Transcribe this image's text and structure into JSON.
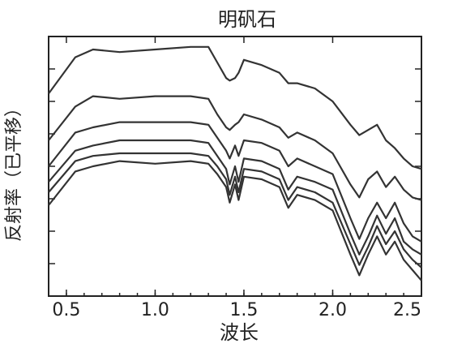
{
  "chart_data": {
    "type": "line",
    "title": "明矾石",
    "xlabel": "波长",
    "ylabel": "反射率（已平移）",
    "xlim": [
      0.4,
      2.5
    ],
    "ylim": [
      0,
      1
    ],
    "xticks": [
      "0.5",
      "1.0",
      "1.5",
      "2.0",
      "2.5"
    ],
    "xtick_values": [
      0.5,
      1.0,
      1.5,
      2.0,
      2.5
    ],
    "y_tick_count": 7,
    "grid": false,
    "x": [
      0.4,
      0.55,
      0.65,
      0.8,
      1.0,
      1.2,
      1.3,
      1.35,
      1.4,
      1.42,
      1.45,
      1.47,
      1.5,
      1.6,
      1.7,
      1.75,
      1.8,
      1.9,
      2.0,
      2.1,
      2.15,
      2.2,
      2.25,
      2.3,
      2.35,
      2.4,
      2.45,
      2.5
    ],
    "series": [
      {
        "values": [
          0.78,
          0.92,
          0.95,
          0.94,
          0.95,
          0.96,
          0.96,
          0.9,
          0.84,
          0.83,
          0.84,
          0.86,
          0.91,
          0.89,
          0.86,
          0.82,
          0.82,
          0.8,
          0.75,
          0.66,
          0.62,
          0.64,
          0.66,
          0.6,
          0.57,
          0.53,
          0.5,
          0.49
        ]
      },
      {
        "values": [
          0.6,
          0.73,
          0.77,
          0.76,
          0.77,
          0.77,
          0.76,
          0.7,
          0.65,
          0.64,
          0.66,
          0.67,
          0.7,
          0.68,
          0.65,
          0.61,
          0.63,
          0.6,
          0.55,
          0.43,
          0.38,
          0.45,
          0.48,
          0.42,
          0.46,
          0.41,
          0.38,
          0.37
        ]
      },
      {
        "values": [
          0.5,
          0.63,
          0.65,
          0.67,
          0.67,
          0.67,
          0.66,
          0.61,
          0.56,
          0.53,
          0.58,
          0.54,
          0.6,
          0.59,
          0.56,
          0.5,
          0.53,
          0.5,
          0.47,
          0.3,
          0.22,
          0.3,
          0.36,
          0.3,
          0.36,
          0.28,
          0.23,
          0.21
        ]
      },
      {
        "values": [
          0.44,
          0.56,
          0.58,
          0.6,
          0.6,
          0.6,
          0.59,
          0.54,
          0.49,
          0.43,
          0.5,
          0.44,
          0.53,
          0.52,
          0.49,
          0.41,
          0.46,
          0.44,
          0.41,
          0.24,
          0.16,
          0.23,
          0.31,
          0.24,
          0.3,
          0.21,
          0.18,
          0.16
        ]
      },
      {
        "values": [
          0.4,
          0.52,
          0.54,
          0.55,
          0.55,
          0.55,
          0.54,
          0.5,
          0.45,
          0.39,
          0.46,
          0.4,
          0.49,
          0.48,
          0.45,
          0.37,
          0.42,
          0.4,
          0.36,
          0.2,
          0.12,
          0.19,
          0.27,
          0.2,
          0.25,
          0.18,
          0.14,
          0.11
        ]
      },
      {
        "values": [
          0.35,
          0.48,
          0.5,
          0.52,
          0.51,
          0.52,
          0.51,
          0.47,
          0.42,
          0.36,
          0.43,
          0.37,
          0.46,
          0.45,
          0.42,
          0.34,
          0.39,
          0.37,
          0.33,
          0.16,
          0.08,
          0.16,
          0.23,
          0.16,
          0.21,
          0.14,
          0.1,
          0.06
        ]
      }
    ]
  }
}
